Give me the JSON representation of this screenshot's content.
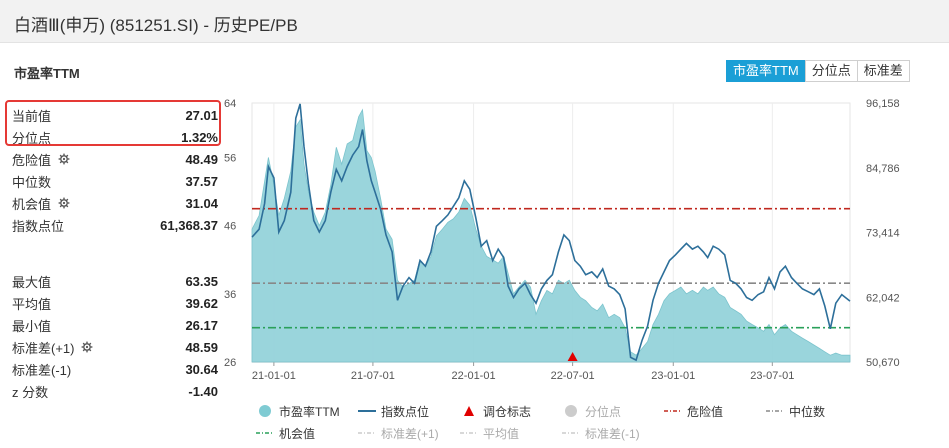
{
  "header": {
    "title": "白酒Ⅲ(申万) (851251.SI) - 历史PE/PB"
  },
  "section_title": "市盈率TTM",
  "tabs": [
    {
      "label": "市盈率TTM",
      "active": true
    },
    {
      "label": "分位点",
      "active": false
    },
    {
      "label": "标准差",
      "active": false
    }
  ],
  "stats_top": [
    {
      "label": "当前值",
      "value": "27.01",
      "gear": false
    },
    {
      "label": "分位点",
      "value": "1.32%",
      "gear": false
    },
    {
      "label": "危险值",
      "value": "48.49",
      "gear": true
    },
    {
      "label": "中位数",
      "value": "37.57",
      "gear": false
    },
    {
      "label": "机会值",
      "value": "31.04",
      "gear": true
    },
    {
      "label": "指数点位",
      "value": "61,368.37",
      "gear": false
    }
  ],
  "stats_bottom": [
    {
      "label": "最大值",
      "value": "63.35",
      "gear": false
    },
    {
      "label": "平均值",
      "value": "39.62",
      "gear": false
    },
    {
      "label": "最小值",
      "value": "26.17",
      "gear": false
    },
    {
      "label": "标准差(+1)",
      "value": "48.59",
      "gear": true
    },
    {
      "label": "标准差(-1)",
      "value": "30.64",
      "gear": false
    },
    {
      "label": "z 分数",
      "value": "-1.40",
      "gear": false
    }
  ],
  "legend": [
    {
      "label": "市盈率TTM",
      "kind": "dot",
      "color": "#7fcbd3",
      "dim": false
    },
    {
      "label": "指数点位",
      "kind": "line",
      "color": "#2d6f9a",
      "dim": false
    },
    {
      "label": "调仓标志",
      "kind": "triangle",
      "color": "#e00000",
      "dim": false
    },
    {
      "label": "分位点",
      "kind": "dot",
      "color": "#cccccc",
      "dim": true
    },
    {
      "label": "危险值",
      "kind": "dashdot",
      "color": "#c0281f",
      "dim": false
    },
    {
      "label": "中位数",
      "kind": "dashdot",
      "color": "#888888",
      "dim": false
    },
    {
      "label": "机会值",
      "kind": "dashdot",
      "color": "#2aa05a",
      "dim": false
    },
    {
      "label": "标准差(+1)",
      "kind": "dashdot",
      "color": "#cccccc",
      "dim": true
    },
    {
      "label": "平均值",
      "kind": "dashdot",
      "color": "#cccccc",
      "dim": true
    },
    {
      "label": "标准差(-1)",
      "kind": "dashdot",
      "color": "#cccccc",
      "dim": true
    }
  ],
  "chart_data": {
    "type": "area",
    "x_ticks": [
      "21-01-01",
      "21-07-01",
      "22-01-01",
      "22-07-01",
      "23-01-01",
      "23-07-01"
    ],
    "x_range": [
      "2020-11-22",
      "2023-11-20"
    ],
    "y_left": {
      "range": [
        26,
        64
      ],
      "ticks": [
        "26",
        "36",
        "46",
        "56",
        "64"
      ]
    },
    "y_right": {
      "range": [
        50670,
        96158
      ],
      "ticks": [
        "50,670",
        "62,042",
        "73,414",
        "84,786",
        "96,158"
      ]
    },
    "reference_lines": [
      {
        "name": "危险值",
        "value": 48.49,
        "color": "#c0281f"
      },
      {
        "name": "中位数",
        "value": 37.57,
        "color": "#888888"
      },
      {
        "name": "机会值",
        "value": 31.04,
        "color": "#2aa05a"
      }
    ],
    "rebalance_markers": [
      "2022-07-01"
    ],
    "series": [
      {
        "name": "市盈率TTM",
        "color": "#8fd0d8",
        "points": [
          [
            "2020-11-22",
            45.5
          ],
          [
            "2020-12-05",
            47.5
          ],
          [
            "2020-12-15",
            52.5
          ],
          [
            "2020-12-22",
            56.0
          ],
          [
            "2021-01-01",
            52.0
          ],
          [
            "2021-01-10",
            47.5
          ],
          [
            "2021-01-20",
            50.0
          ],
          [
            "2021-02-01",
            54.0
          ],
          [
            "2021-02-10",
            60.5
          ],
          [
            "2021-02-18",
            61.5
          ],
          [
            "2021-02-25",
            55.0
          ],
          [
            "2021-03-05",
            51.0
          ],
          [
            "2021-03-15",
            48.0
          ],
          [
            "2021-03-25",
            46.0
          ],
          [
            "2021-04-05",
            48.0
          ],
          [
            "2021-04-15",
            52.0
          ],
          [
            "2021-04-25",
            57.5
          ],
          [
            "2021-05-05",
            55.0
          ],
          [
            "2021-05-15",
            58.0
          ],
          [
            "2021-05-25",
            58.5
          ],
          [
            "2021-06-05",
            62.0
          ],
          [
            "2021-06-12",
            63.0
          ],
          [
            "2021-06-20",
            57.0
          ],
          [
            "2021-06-28",
            56.0
          ],
          [
            "2021-07-05",
            54.0
          ],
          [
            "2021-07-15",
            50.0
          ],
          [
            "2021-07-25",
            45.5
          ],
          [
            "2021-08-05",
            44.0
          ],
          [
            "2021-08-15",
            38.0
          ],
          [
            "2021-08-25",
            37.0
          ],
          [
            "2021-09-05",
            37.5
          ],
          [
            "2021-09-15",
            38.0
          ],
          [
            "2021-09-25",
            41.0
          ],
          [
            "2021-10-05",
            40.0
          ],
          [
            "2021-10-15",
            41.5
          ],
          [
            "2021-10-25",
            44.5
          ],
          [
            "2021-11-05",
            45.5
          ],
          [
            "2021-11-15",
            46.5
          ],
          [
            "2021-11-25",
            47.0
          ],
          [
            "2021-12-05",
            48.0
          ],
          [
            "2021-12-15",
            50.0
          ],
          [
            "2021-12-25",
            49.0
          ],
          [
            "2022-01-05",
            45.5
          ],
          [
            "2022-01-15",
            43.0
          ],
          [
            "2022-01-25",
            41.5
          ],
          [
            "2022-02-05",
            41.0
          ],
          [
            "2022-02-15",
            40.5
          ],
          [
            "2022-02-25",
            41.5
          ],
          [
            "2022-03-05",
            39.0
          ],
          [
            "2022-03-15",
            36.0
          ],
          [
            "2022-03-25",
            37.0
          ],
          [
            "2022-04-05",
            38.0
          ],
          [
            "2022-04-15",
            37.0
          ],
          [
            "2022-04-25",
            33.0
          ],
          [
            "2022-05-05",
            35.0
          ],
          [
            "2022-05-15",
            36.5
          ],
          [
            "2022-05-25",
            36.0
          ],
          [
            "2022-06-05",
            38.0
          ],
          [
            "2022-06-15",
            37.5
          ],
          [
            "2022-06-25",
            38.0
          ],
          [
            "2022-07-05",
            36.5
          ],
          [
            "2022-07-15",
            35.5
          ],
          [
            "2022-07-25",
            35.0
          ],
          [
            "2022-08-05",
            34.0
          ],
          [
            "2022-08-15",
            33.5
          ],
          [
            "2022-08-25",
            34.5
          ],
          [
            "2022-09-05",
            32.5
          ],
          [
            "2022-09-15",
            33.0
          ],
          [
            "2022-09-25",
            32.5
          ],
          [
            "2022-10-05",
            31.0
          ],
          [
            "2022-10-15",
            27.5
          ],
          [
            "2022-10-25",
            27.0
          ],
          [
            "2022-11-05",
            28.0
          ],
          [
            "2022-11-15",
            29.0
          ],
          [
            "2022-11-25",
            31.5
          ],
          [
            "2022-12-05",
            33.0
          ],
          [
            "2022-12-15",
            35.0
          ],
          [
            "2022-12-25",
            36.0
          ],
          [
            "2023-01-05",
            36.5
          ],
          [
            "2023-01-15",
            37.0
          ],
          [
            "2023-01-25",
            36.0
          ],
          [
            "2023-02-05",
            36.5
          ],
          [
            "2023-02-15",
            36.0
          ],
          [
            "2023-02-25",
            37.0
          ],
          [
            "2023-03-05",
            36.5
          ],
          [
            "2023-03-15",
            37.0
          ],
          [
            "2023-03-25",
            36.0
          ],
          [
            "2023-04-05",
            35.5
          ],
          [
            "2023-04-15",
            34.0
          ],
          [
            "2023-04-25",
            33.5
          ],
          [
            "2023-05-05",
            33.0
          ],
          [
            "2023-05-15",
            32.0
          ],
          [
            "2023-05-25",
            31.5
          ],
          [
            "2023-06-05",
            31.0
          ],
          [
            "2023-06-15",
            30.5
          ],
          [
            "2023-06-25",
            31.5
          ],
          [
            "2023-07-05",
            30.0
          ],
          [
            "2023-07-15",
            31.0
          ],
          [
            "2023-07-25",
            31.5
          ],
          [
            "2023-08-05",
            30.5
          ],
          [
            "2023-08-15",
            30.0
          ],
          [
            "2023-08-25",
            29.5
          ],
          [
            "2023-09-05",
            29.0
          ],
          [
            "2023-09-15",
            28.5
          ],
          [
            "2023-09-25",
            28.0
          ],
          [
            "2023-10-05",
            27.5
          ],
          [
            "2023-10-15",
            27.0
          ],
          [
            "2023-10-25",
            27.3
          ],
          [
            "2023-11-05",
            27.0
          ],
          [
            "2023-11-20",
            27.0
          ]
        ]
      },
      {
        "name": "指数点位",
        "color": "#2d6f9a",
        "axis": "right",
        "points": [
          [
            "2020-11-22",
            72600
          ],
          [
            "2020-12-05",
            74000
          ],
          [
            "2020-12-15",
            78500
          ],
          [
            "2020-12-22",
            85000
          ],
          [
            "2021-01-01",
            83000
          ],
          [
            "2021-01-10",
            73500
          ],
          [
            "2021-01-20",
            75500
          ],
          [
            "2021-02-01",
            80500
          ],
          [
            "2021-02-10",
            93500
          ],
          [
            "2021-02-18",
            96000
          ],
          [
            "2021-02-25",
            88500
          ],
          [
            "2021-03-05",
            82000
          ],
          [
            "2021-03-15",
            75500
          ],
          [
            "2021-03-25",
            73500
          ],
          [
            "2021-04-05",
            75500
          ],
          [
            "2021-04-15",
            80500
          ],
          [
            "2021-04-25",
            84500
          ],
          [
            "2021-05-05",
            82500
          ],
          [
            "2021-05-15",
            85000
          ],
          [
            "2021-05-25",
            87000
          ],
          [
            "2021-06-05",
            88500
          ],
          [
            "2021-06-12",
            91500
          ],
          [
            "2021-06-20",
            86000
          ],
          [
            "2021-06-28",
            82500
          ],
          [
            "2021-07-05",
            80500
          ],
          [
            "2021-07-15",
            77500
          ],
          [
            "2021-07-25",
            73000
          ],
          [
            "2021-08-05",
            70000
          ],
          [
            "2021-08-15",
            61500
          ],
          [
            "2021-08-25",
            64000
          ],
          [
            "2021-09-05",
            65500
          ],
          [
            "2021-09-15",
            64500
          ],
          [
            "2021-09-25",
            68500
          ],
          [
            "2021-10-05",
            67500
          ],
          [
            "2021-10-15",
            70000
          ],
          [
            "2021-10-25",
            74500
          ],
          [
            "2021-11-05",
            75500
          ],
          [
            "2021-11-15",
            76500
          ],
          [
            "2021-11-25",
            78000
          ],
          [
            "2021-12-05",
            79500
          ],
          [
            "2021-12-15",
            82500
          ],
          [
            "2021-12-25",
            81000
          ],
          [
            "2022-01-05",
            76000
          ],
          [
            "2022-01-15",
            71000
          ],
          [
            "2022-01-25",
            72000
          ],
          [
            "2022-02-05",
            68500
          ],
          [
            "2022-02-15",
            70500
          ],
          [
            "2022-02-25",
            69000
          ],
          [
            "2022-03-05",
            64000
          ],
          [
            "2022-03-15",
            62000
          ],
          [
            "2022-03-25",
            63500
          ],
          [
            "2022-04-05",
            64500
          ],
          [
            "2022-04-15",
            62500
          ],
          [
            "2022-04-25",
            61000
          ],
          [
            "2022-05-05",
            63500
          ],
          [
            "2022-05-15",
            65000
          ],
          [
            "2022-05-25",
            66000
          ],
          [
            "2022-06-05",
            70000
          ],
          [
            "2022-06-15",
            73000
          ],
          [
            "2022-06-25",
            72000
          ],
          [
            "2022-07-05",
            68500
          ],
          [
            "2022-07-15",
            67500
          ],
          [
            "2022-07-25",
            66000
          ],
          [
            "2022-08-05",
            66500
          ],
          [
            "2022-08-15",
            65500
          ],
          [
            "2022-08-25",
            67000
          ],
          [
            "2022-09-05",
            64000
          ],
          [
            "2022-09-15",
            63500
          ],
          [
            "2022-09-25",
            62500
          ],
          [
            "2022-10-05",
            60000
          ],
          [
            "2022-10-15",
            51500
          ],
          [
            "2022-10-25",
            51000
          ],
          [
            "2022-11-05",
            54500
          ],
          [
            "2022-11-15",
            57000
          ],
          [
            "2022-11-25",
            61500
          ],
          [
            "2022-12-05",
            64500
          ],
          [
            "2022-12-15",
            66500
          ],
          [
            "2022-12-25",
            68500
          ],
          [
            "2023-01-05",
            69500
          ],
          [
            "2023-01-15",
            70500
          ],
          [
            "2023-01-25",
            71500
          ],
          [
            "2023-02-05",
            70500
          ],
          [
            "2023-02-15",
            71000
          ],
          [
            "2023-02-25",
            70000
          ],
          [
            "2023-03-05",
            69000
          ],
          [
            "2023-03-15",
            71000
          ],
          [
            "2023-03-25",
            70500
          ],
          [
            "2023-04-05",
            69500
          ],
          [
            "2023-04-15",
            65000
          ],
          [
            "2023-04-25",
            64500
          ],
          [
            "2023-05-05",
            63500
          ],
          [
            "2023-05-15",
            62000
          ],
          [
            "2023-05-25",
            61500
          ],
          [
            "2023-06-05",
            62500
          ],
          [
            "2023-06-15",
            63000
          ],
          [
            "2023-06-25",
            65500
          ],
          [
            "2023-07-05",
            63500
          ],
          [
            "2023-07-15",
            66500
          ],
          [
            "2023-07-25",
            67500
          ],
          [
            "2023-08-05",
            65500
          ],
          [
            "2023-08-15",
            64500
          ],
          [
            "2023-08-25",
            63500
          ],
          [
            "2023-09-05",
            63000
          ],
          [
            "2023-09-15",
            62500
          ],
          [
            "2023-09-25",
            63500
          ],
          [
            "2023-10-05",
            60500
          ],
          [
            "2023-10-15",
            56500
          ],
          [
            "2023-10-25",
            61000
          ],
          [
            "2023-11-05",
            62500
          ],
          [
            "2023-11-20",
            61368
          ]
        ]
      }
    ]
  }
}
